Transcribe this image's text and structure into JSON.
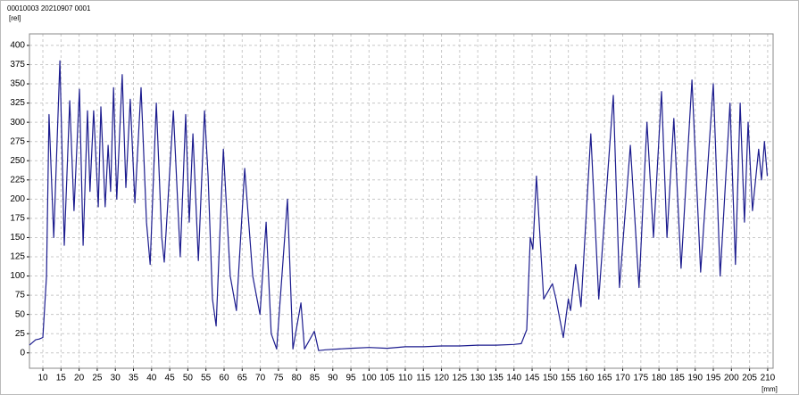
{
  "header": "00010003   20210907   0001",
  "chart_data": {
    "type": "line",
    "y_label": "[rel]",
    "x_label": "[mm]",
    "color": "#1c1c8e",
    "grid": true,
    "xlim": [
      6.3,
      211.5
    ],
    "ylim": [
      -20,
      415
    ],
    "xticks": [
      10,
      15,
      20,
      25,
      30,
      35,
      40,
      45,
      50,
      55,
      60,
      65,
      70,
      75,
      80,
      85,
      90,
      95,
      100,
      105,
      110,
      115,
      120,
      125,
      130,
      135,
      140,
      145,
      150,
      155,
      160,
      165,
      170,
      175,
      180,
      185,
      190,
      195,
      200,
      205,
      210
    ],
    "yticks": [
      0,
      25,
      50,
      75,
      100,
      125,
      150,
      175,
      200,
      225,
      250,
      275,
      300,
      325,
      350,
      375,
      400
    ],
    "x": [
      6.3,
      8,
      9,
      10,
      11,
      11.7,
      13,
      14.7,
      15.9,
      17.4,
      18.6,
      20.1,
      21.1,
      22.3,
      23,
      24,
      25.3,
      26,
      27.2,
      28,
      28.7,
      29.5,
      30.4,
      31.9,
      32.9,
      34.1,
      35.4,
      37.1,
      38.6,
      39.6,
      41.3,
      42.8,
      43.5,
      46,
      47.9,
      49.4,
      50.4,
      51.4,
      52.9,
      54.6,
      55.6,
      56.8,
      57.8,
      59.8,
      61.7,
      63.4,
      65.7,
      67.9,
      69.9,
      71.6,
      73,
      74.5,
      77.5,
      79,
      81.2,
      82.2,
      84.9,
      86.1,
      88,
      95,
      100,
      105,
      110,
      115,
      120,
      125,
      130,
      135,
      140,
      142,
      143.5,
      144.5,
      145.2,
      146.2,
      148.2,
      150.6,
      151.6,
      153.6,
      155,
      155.6,
      157,
      158.5,
      161.2,
      163.4,
      167.4,
      169.1,
      172.1,
      174.5,
      176.7,
      178.5,
      180.7,
      182.2,
      184.1,
      186.1,
      189.1,
      191.5,
      195,
      196.9,
      199.6,
      201.1,
      202.4,
      203.6,
      204.6,
      205.8,
      207.5,
      208.3,
      209.1,
      209.9
    ],
    "values": [
      10,
      17,
      18,
      20,
      100,
      310,
      150,
      380,
      140,
      328,
      185,
      343,
      140,
      315,
      210,
      315,
      190,
      320,
      190,
      270,
      210,
      345,
      200,
      362,
      215,
      330,
      195,
      345,
      170,
      115,
      325,
      150,
      118,
      315,
      125,
      310,
      170,
      285,
      120,
      315,
      230,
      70,
      35,
      265,
      100,
      55,
      240,
      100,
      50,
      170,
      25,
      5,
      200,
      5,
      65,
      5,
      28,
      3,
      4,
      6,
      7,
      6,
      8,
      8,
      9,
      9,
      10,
      10,
      11,
      12,
      30,
      150,
      135,
      230,
      70,
      90,
      70,
      20,
      70,
      55,
      115,
      60,
      285,
      70,
      335,
      85,
      270,
      85,
      300,
      150,
      340,
      150,
      305,
      110,
      355,
      105,
      350,
      100,
      325,
      115,
      325,
      170,
      300,
      185,
      265,
      225,
      275,
      230
    ]
  }
}
